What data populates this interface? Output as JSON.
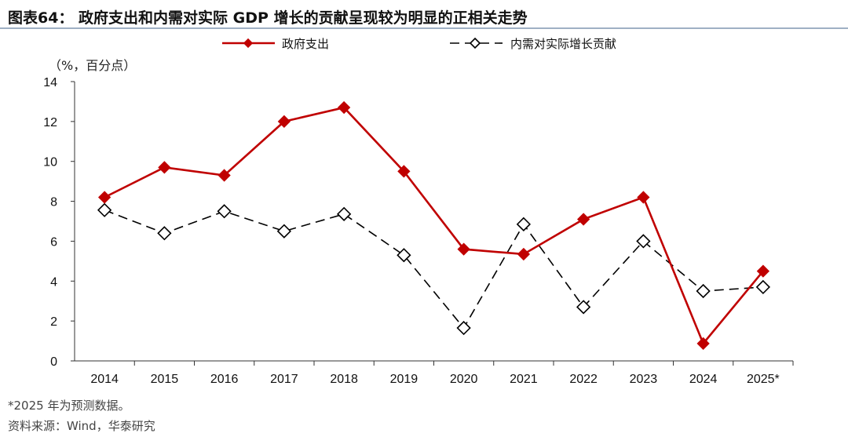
{
  "title": "图表64： 政府支出和内需对实际 GDP 增长的贡献呈现较为明显的正相关走势",
  "unit": "（%，百分点）",
  "footnote": "*2025 年为预测数据。",
  "source": "资料来源：Wind，华泰研究",
  "chart_data": {
    "type": "line",
    "categories": [
      "2014",
      "2015",
      "2016",
      "2017",
      "2018",
      "2019",
      "2020",
      "2021",
      "2022",
      "2023",
      "2024",
      "2025*"
    ],
    "ylim": [
      0,
      14
    ],
    "yticks": [
      "0",
      "2",
      "4",
      "6",
      "8",
      "10",
      "12",
      "14"
    ],
    "legend": "top",
    "grid": false,
    "series": [
      {
        "name": "政府支出",
        "color": "#c00000",
        "marker": "filled-diamond",
        "style": "solid",
        "values": [
          8.2,
          9.7,
          9.3,
          12.0,
          12.7,
          9.5,
          5.6,
          5.35,
          7.1,
          8.2,
          0.87,
          4.5
        ]
      },
      {
        "name": "内需对实际增长贡献",
        "color": "#000000",
        "marker": "open-diamond",
        "style": "dashed",
        "values": [
          7.56,
          6.4,
          7.5,
          6.5,
          7.36,
          5.3,
          1.65,
          6.85,
          2.7,
          6.0,
          3.5,
          3.7
        ]
      }
    ]
  }
}
